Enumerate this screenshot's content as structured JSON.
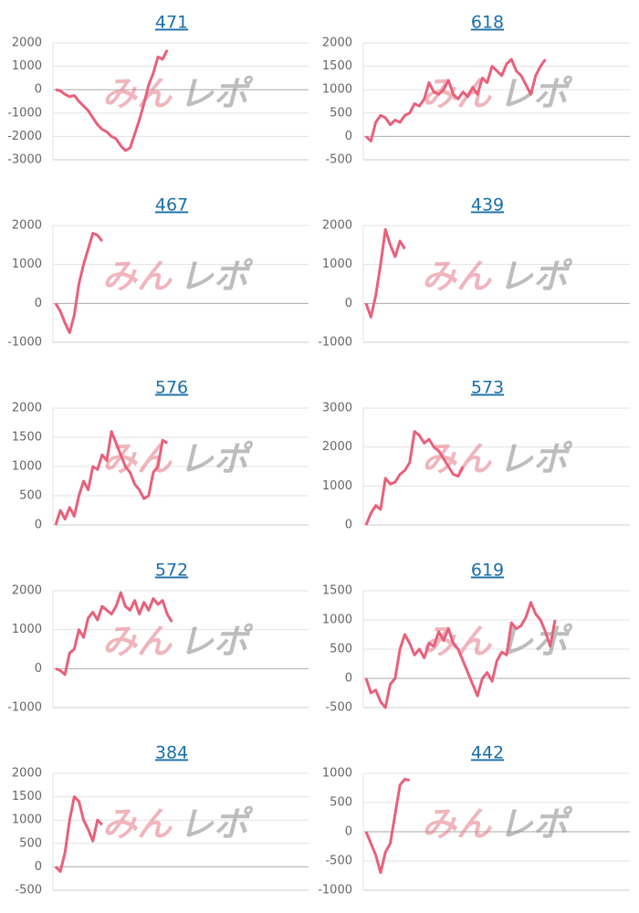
{
  "watermark": [
    "みん",
    "レポ"
  ],
  "chart_data": [
    {
      "type": "line",
      "title": "471",
      "color": "#e8607a",
      "ylim": [
        -3000,
        2000
      ],
      "yticks": [
        -3000,
        -2000,
        -1000,
        0,
        1000,
        2000
      ],
      "grid": true,
      "values": [
        0,
        -50,
        -200,
        -300,
        -250,
        -500,
        -700,
        -900,
        -1200,
        -1500,
        -1700,
        -1800,
        -2000,
        -2100,
        -2400,
        -2600,
        -2500,
        -1900,
        -1300,
        -600,
        200,
        700,
        1400,
        1300,
        1700
      ]
    },
    {
      "type": "line",
      "title": "618",
      "color": "#e8607a",
      "ylim": [
        -500,
        2000
      ],
      "yticks": [
        -500,
        0,
        500,
        1000,
        1500,
        2000
      ],
      "grid": true,
      "values": [
        0,
        -100,
        300,
        450,
        400,
        250,
        350,
        300,
        450,
        500,
        700,
        650,
        800,
        1150,
        950,
        900,
        1000,
        1200,
        900,
        800,
        950,
        850,
        1050,
        900,
        1250,
        1150,
        1500,
        1400,
        1300,
        1550,
        1650,
        1400,
        1300,
        1100,
        900,
        1300,
        1500,
        1650
      ]
    },
    {
      "type": "line",
      "title": "467",
      "color": "#e8607a",
      "ylim": [
        -1000,
        2000
      ],
      "yticks": [
        -1000,
        0,
        1000,
        2000
      ],
      "grid": true,
      "values": [
        0,
        -200,
        -500,
        -750,
        -300,
        500,
        1000,
        1400,
        1800,
        1750,
        1600
      ]
    },
    {
      "type": "line",
      "title": "439",
      "color": "#e8607a",
      "ylim": [
        -1000,
        2000
      ],
      "yticks": [
        -1000,
        0,
        1000,
        2000
      ],
      "grid": true,
      "values": [
        0,
        -350,
        200,
        1000,
        1900,
        1500,
        1200,
        1600,
        1400
      ]
    },
    {
      "type": "line",
      "title": "576",
      "color": "#e8607a",
      "ylim": [
        0,
        2000
      ],
      "yticks": [
        0,
        500,
        1000,
        1500,
        2000
      ],
      "grid": true,
      "values": [
        0,
        250,
        100,
        300,
        150,
        500,
        750,
        600,
        1000,
        950,
        1200,
        1100,
        1600,
        1400,
        1200,
        1000,
        900,
        700,
        600,
        450,
        500,
        900,
        1000,
        1450,
        1400
      ]
    },
    {
      "type": "line",
      "title": "573",
      "color": "#e8607a",
      "ylim": [
        0,
        3000
      ],
      "yticks": [
        0,
        1000,
        2000,
        3000
      ],
      "grid": true,
      "values": [
        0,
        300,
        500,
        400,
        1200,
        1050,
        1100,
        1300,
        1400,
        1600,
        2400,
        2300,
        2100,
        2200,
        2000,
        1900,
        1700,
        1500,
        1300,
        1250,
        1500
      ]
    },
    {
      "type": "line",
      "title": "572",
      "color": "#e8607a",
      "ylim": [
        -1000,
        2000
      ],
      "yticks": [
        -1000,
        0,
        1000,
        2000
      ],
      "grid": true,
      "values": [
        0,
        -50,
        -150,
        400,
        500,
        1000,
        800,
        1300,
        1450,
        1250,
        1600,
        1500,
        1400,
        1600,
        1950,
        1600,
        1500,
        1750,
        1400,
        1700,
        1500,
        1800,
        1650,
        1750,
        1400,
        1200
      ]
    },
    {
      "type": "line",
      "title": "619",
      "color": "#e8607a",
      "ylim": [
        -500,
        1500
      ],
      "yticks": [
        -500,
        0,
        500,
        1000,
        1500
      ],
      "grid": true,
      "values": [
        0,
        -250,
        -200,
        -400,
        -500,
        -100,
        0,
        500,
        750,
        600,
        400,
        500,
        350,
        600,
        550,
        800,
        650,
        850,
        600,
        500,
        300,
        100,
        -100,
        -300,
        0,
        100,
        -50,
        300,
        450,
        400,
        950,
        850,
        900,
        1050,
        1300,
        1100,
        1000,
        800,
        550,
        1000
      ]
    },
    {
      "type": "line",
      "title": "384",
      "color": "#e8607a",
      "ylim": [
        -500,
        2000
      ],
      "yticks": [
        -500,
        0,
        500,
        1000,
        1500,
        2000
      ],
      "grid": true,
      "values": [
        0,
        -100,
        300,
        1000,
        1500,
        1400,
        1000,
        800,
        550,
        1000,
        900
      ]
    },
    {
      "type": "line",
      "title": "442",
      "color": "#e8607a",
      "ylim": [
        -1000,
        1000
      ],
      "yticks": [
        -1000,
        -500,
        0,
        500,
        1000
      ],
      "grid": true,
      "values": [
        0,
        -200,
        -400,
        -700,
        -350,
        -200,
        300,
        800,
        900,
        880
      ]
    }
  ]
}
